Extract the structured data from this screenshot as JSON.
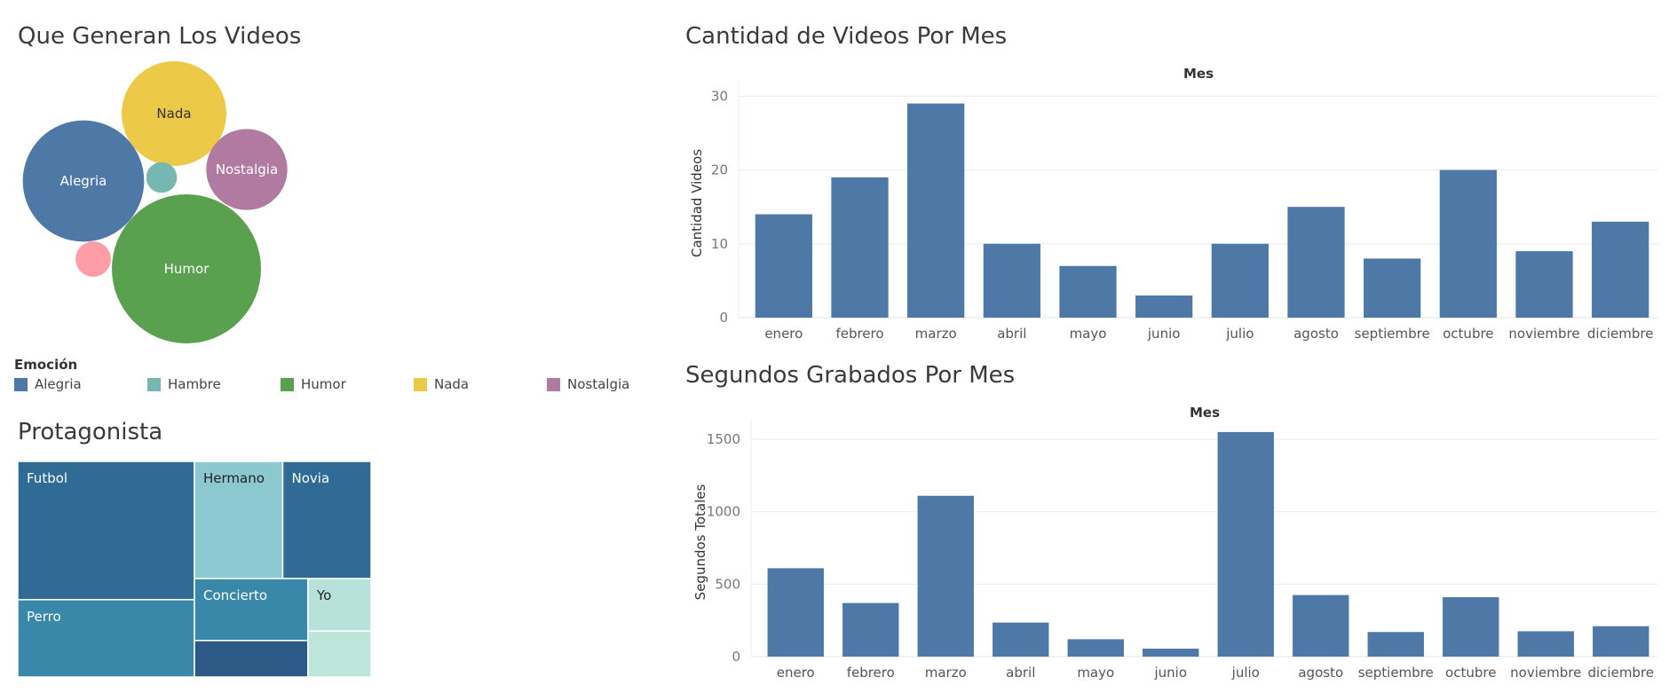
{
  "chart_data": [
    {
      "type": "bubble",
      "title": "Que Generan Los Videos",
      "legend_title": "Emoción",
      "legend": [
        {
          "label": "Alegria",
          "color": "#4e79a7"
        },
        {
          "label": "Hambre",
          "color": "#76b7b2"
        },
        {
          "label": "Humor",
          "color": "#59a14f"
        },
        {
          "label": "Nada",
          "color": "#edc948"
        },
        {
          "label": "Nostalgia",
          "color": "#b07aa1"
        }
      ],
      "bubbles": [
        {
          "label": "Humor",
          "value": 71,
          "color": "#59a14f",
          "show_label": true
        },
        {
          "label": "Alegria",
          "value": 47,
          "color": "#4e79a7",
          "show_label": true
        },
        {
          "label": "Nada",
          "value": 35,
          "color": "#edc948",
          "show_label": true
        },
        {
          "label": "Nostalgia",
          "value": 21,
          "color": "#b07aa1",
          "show_label": true
        },
        {
          "label": "",
          "value": 4,
          "color": "#ff9da7",
          "show_label": false
        },
        {
          "label": "",
          "value": 3,
          "color": "#76b7b2",
          "show_label": false
        }
      ]
    },
    {
      "type": "treemap",
      "title": "Protagonista",
      "items": [
        {
          "label": "Futbol",
          "value": 59,
          "color": "#2f6b95"
        },
        {
          "label": "Perro",
          "value": 33,
          "color": "#3987a9"
        },
        {
          "label": "Hermano",
          "value": 25,
          "color": "#8bc8cf"
        },
        {
          "label": "Novia",
          "value": 25,
          "color": "#2f6b95"
        },
        {
          "label": "Concierto",
          "value": 17,
          "color": "#3987a9"
        },
        {
          "label": "",
          "value": 10,
          "color": "#2c5985"
        },
        {
          "label": "Yo",
          "value": 8,
          "color": "#b7e2dc"
        },
        {
          "label": "",
          "value": 7,
          "color": "#bde5da"
        }
      ]
    },
    {
      "type": "bar",
      "title": "Cantidad de Videos Por Mes",
      "header": "Mes",
      "ylabel": "Cantidad Videos",
      "categories": [
        "enero",
        "febrero",
        "marzo",
        "abril",
        "mayo",
        "junio",
        "julio",
        "agosto",
        "septiembre",
        "octubre",
        "noviembre",
        "diciembre"
      ],
      "values": [
        14,
        19,
        29,
        10,
        7,
        3,
        10,
        15,
        8,
        20,
        9,
        13
      ],
      "ylim": [
        0,
        31
      ],
      "yticks": [
        0,
        10,
        20,
        30
      ],
      "color": "#4e79a7"
    },
    {
      "type": "bar",
      "title": "Segundos Grabados Por Mes",
      "header": "Mes",
      "ylabel": "Segundos Totales",
      "categories": [
        "enero",
        "febrero",
        "marzo",
        "abril",
        "mayo",
        "junio",
        "julio",
        "agosto",
        "septiembre",
        "octubre",
        "noviembre",
        "diciembre"
      ],
      "values": [
        610,
        370,
        1110,
        235,
        120,
        55,
        1550,
        425,
        170,
        410,
        175,
        210
      ],
      "ylim": [
        0,
        1580
      ],
      "yticks": [
        0,
        500,
        1000,
        1500
      ],
      "color": "#4e79a7"
    }
  ]
}
